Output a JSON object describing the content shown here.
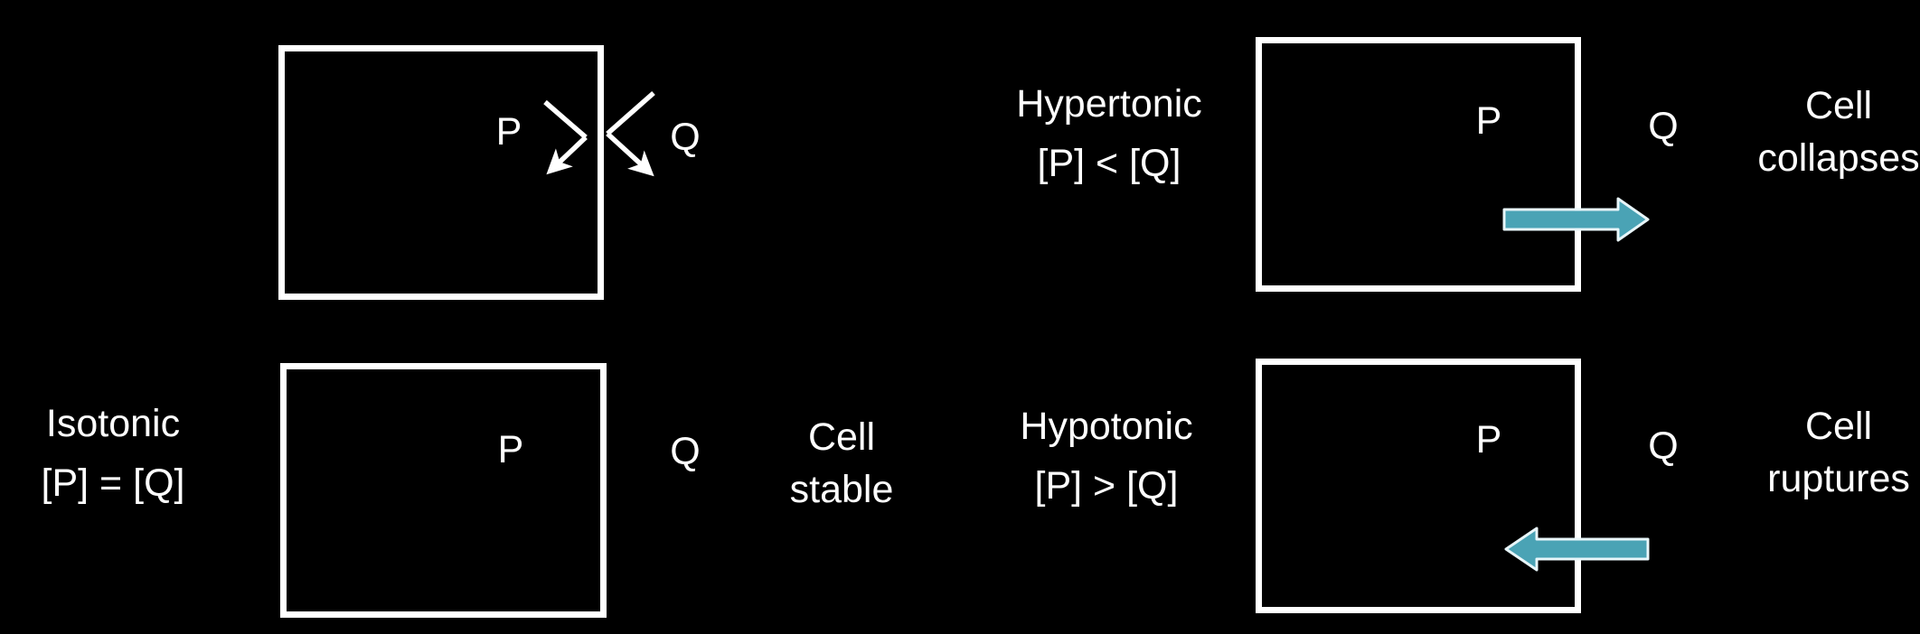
{
  "colors": {
    "background": "#000000",
    "foreground": "#ffffff",
    "arrow_fill": "#4aa3b5",
    "arrow_outline": "#e8f6fa"
  },
  "general": {
    "inner_label": "P",
    "outer_label": "Q",
    "arrows": "diffusion-arrows-icon"
  },
  "isotonic": {
    "title": "Isotonic",
    "relation": "[P] = [Q]",
    "inner_label": "P",
    "outer_label": "Q",
    "outcome_line1": "Cell",
    "outcome_line2": "stable"
  },
  "hypertonic": {
    "title": "Hypertonic",
    "relation": "[P] < [Q]",
    "inner_label": "P",
    "outer_label": "Q",
    "outcome_line1": "Cell",
    "outcome_line2": "collapses",
    "arrow": "arrow-right-icon"
  },
  "hypotonic": {
    "title": "Hypotonic",
    "relation": "[P] > [Q]",
    "inner_label": "P",
    "outer_label": "Q",
    "outcome_line1": "Cell",
    "outcome_line2": "ruptures",
    "arrow": "arrow-left-icon"
  }
}
